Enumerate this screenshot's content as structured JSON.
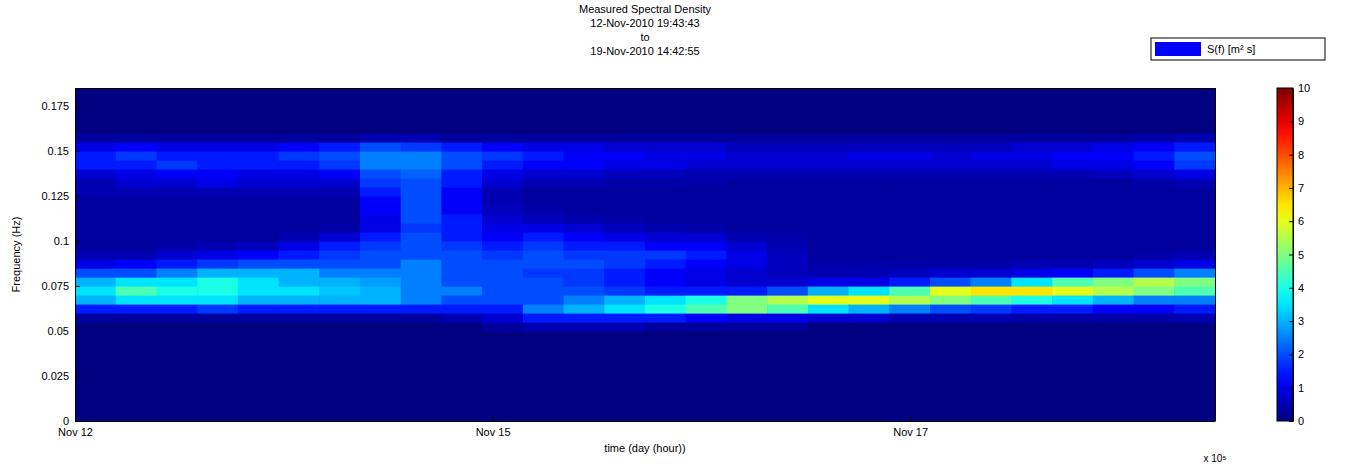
{
  "chart_data": {
    "type": "heatmap",
    "title": "Measured Spectral Density",
    "subtitle": [
      "12-Nov-2010 19:43:43",
      "to",
      "19-Nov-2010 14:42:55"
    ],
    "xlabel": "time (day (hour))",
    "ylabel": "Frequency (Hz)",
    "annotations": [
      "x 10⁵"
    ],
    "xlim": [
      0,
      5.46
    ],
    "xticks": [
      {
        "value": 0,
        "label": "Nov 12"
      },
      {
        "value": 2,
        "label": "Nov 15"
      },
      {
        "value": 4,
        "label": "Nov 17"
      }
    ],
    "ylim": [
      0,
      0.185
    ],
    "yticks": [
      0,
      0.025,
      0.05,
      0.075,
      0.1,
      0.125,
      0.15,
      0.175
    ],
    "grid": false,
    "legend": "top-right",
    "x_bins": [
      0,
      0.195,
      0.39,
      0.585,
      0.78,
      0.975,
      1.17,
      1.365,
      1.56,
      1.755,
      1.95,
      2.145,
      2.34,
      2.535,
      2.73,
      2.925,
      3.12,
      3.315,
      3.51,
      3.705,
      3.9,
      4.095,
      4.29,
      4.485,
      4.68,
      4.875,
      5.07,
      5.265,
      5.46
    ],
    "y_bins": [
      0.04,
      0.045,
      0.05,
      0.055,
      0.06,
      0.065,
      0.07,
      0.075,
      0.08,
      0.085,
      0.09,
      0.095,
      0.1,
      0.105,
      0.11,
      0.115,
      0.12,
      0.125,
      0.13,
      0.135,
      0.14,
      0.145,
      0.15,
      0.155,
      0.16,
      0.165
    ],
    "colorbar": {
      "range": [
        0,
        10
      ],
      "ticks": [
        0,
        1,
        2,
        3,
        4,
        5,
        6,
        7,
        8,
        9,
        10
      ]
    },
    "series": [
      {
        "name": "S(f) [m² s]",
        "color": "#0000ff",
        "cells": [
          [
            0,
            0,
            0,
            0.3,
            1.5,
            3,
            3.5,
            3,
            2,
            1,
            0.5,
            0.3,
            0.3,
            0.3,
            0.3,
            0.3,
            0.3,
            0.5,
            0.5,
            0.8,
            1.5,
            1.5,
            1,
            0.3,
            0
          ],
          [
            0,
            0,
            0,
            0.3,
            1.5,
            3.5,
            4.5,
            3.5,
            2,
            1.2,
            0.5,
            0.3,
            0.3,
            0.3,
            0.3,
            0.3,
            0.3,
            0.5,
            0.8,
            1,
            1.5,
            1.8,
            1.2,
            0.3,
            0
          ],
          [
            0,
            0,
            0,
            0.3,
            1.5,
            3.5,
            4,
            3.5,
            2.5,
            1.5,
            0.8,
            0.4,
            0.3,
            0.3,
            0.3,
            0.3,
            0.3,
            0.5,
            0.8,
            1.2,
            1.8,
            1.5,
            1,
            0.3,
            0
          ],
          [
            0,
            0,
            0,
            0.3,
            1.8,
            3.5,
            4,
            4,
            3,
            1.8,
            1,
            0.5,
            0.3,
            0.3,
            0.3,
            0.3,
            0.3,
            0.5,
            1,
            1.2,
            1.5,
            1.5,
            1,
            0.3,
            0
          ],
          [
            0,
            0,
            0,
            0.3,
            1.5,
            3,
            3.5,
            3.5,
            3,
            2,
            1.2,
            0.6,
            0.3,
            0.3,
            0.3,
            0.3,
            0.3,
            0.5,
            0.8,
            1,
            1.5,
            1.5,
            1,
            0.3,
            0
          ],
          [
            0,
            0,
            0,
            0.3,
            1.5,
            3,
            3.5,
            3,
            3,
            2,
            1.5,
            1,
            0.5,
            0.3,
            0.3,
            0.3,
            0.3,
            0.5,
            0.8,
            1,
            1.5,
            1.8,
            1.2,
            0.3,
            0
          ],
          [
            0,
            0,
            0,
            0.3,
            1.5,
            3,
            3.2,
            3,
            2.5,
            2,
            1.8,
            1.5,
            0.8,
            0.4,
            0.3,
            0.3,
            0.3,
            0.5,
            0.8,
            1.2,
            1.8,
            2,
            1.5,
            0.3,
            0
          ],
          [
            0,
            0,
            0,
            0.3,
            1.5,
            3,
            3,
            2.8,
            2.5,
            2,
            2,
            1.8,
            1.5,
            1,
            1,
            1.2,
            1.2,
            1.5,
            1.8,
            2,
            2.5,
            2.5,
            2,
            0.5,
            0
          ],
          [
            0,
            0,
            0,
            0.3,
            1.5,
            2.5,
            2.5,
            2.5,
            2.5,
            2.5,
            2,
            2,
            2,
            1.8,
            2,
            2,
            2,
            2,
            2,
            2.2,
            2.5,
            2.5,
            1.8,
            0.5,
            0
          ],
          [
            0,
            0,
            0,
            0.5,
            1.5,
            2,
            2.5,
            2,
            2,
            2,
            2,
            1.8,
            1.5,
            1.5,
            1.5,
            1.2,
            1.2,
            1.2,
            1.5,
            1.5,
            2,
            2,
            1.5,
            0.3,
            0
          ],
          [
            0,
            0,
            0.3,
            0.8,
            1.5,
            2,
            2,
            2,
            2,
            2,
            1.8,
            1.5,
            1.2,
            1,
            0.8,
            0.6,
            0.5,
            0.5,
            0.8,
            1,
            1.5,
            1.8,
            1.2,
            0.3,
            0
          ],
          [
            0,
            0,
            0.5,
            1.5,
            2.5,
            2,
            2,
            2,
            1.8,
            2,
            2,
            1.8,
            1.5,
            1,
            0.6,
            0.4,
            0.3,
            0.3,
            0.5,
            0.8,
            1.2,
            1.5,
            1,
            0.3,
            0
          ],
          [
            0,
            0,
            0.5,
            1.5,
            3,
            2.5,
            2,
            1.8,
            1.8,
            2,
            1.8,
            1.5,
            1.2,
            0.8,
            0.5,
            0.3,
            0.3,
            0.3,
            0.5,
            0.8,
            1.2,
            1.2,
            1,
            0.3,
            0
          ],
          [
            0,
            0,
            0.5,
            1.5,
            3.5,
            3,
            1.8,
            1.5,
            1.5,
            1.8,
            1.8,
            1.5,
            1,
            0.6,
            0.4,
            0.3,
            0.3,
            0.3,
            0.4,
            0.6,
            1,
            1.2,
            0.8,
            0.3,
            0
          ],
          [
            0,
            0,
            0.3,
            1.5,
            4,
            3.5,
            1.5,
            1.2,
            1.2,
            1.5,
            1.8,
            1.2,
            0.8,
            0.5,
            0.3,
            0.3,
            0.3,
            0.3,
            0.4,
            0.6,
            1,
            1,
            0.8,
            0.3,
            0
          ],
          [
            0,
            0,
            0.3,
            1.2,
            4.5,
            4,
            1.5,
            1,
            1,
            1.2,
            1.5,
            1.2,
            0.8,
            0.4,
            0.3,
            0.3,
            0.3,
            0.3,
            0.4,
            0.5,
            0.8,
            1,
            0.8,
            0.3,
            0
          ],
          [
            0,
            0,
            0.3,
            1,
            5,
            5,
            1.5,
            0.8,
            0.8,
            1,
            1,
            0.8,
            0.5,
            0.3,
            0.3,
            0.3,
            0.3,
            0.3,
            0.3,
            0.5,
            0.8,
            0.8,
            0.6,
            0.3,
            0
          ],
          [
            0,
            0,
            0.3,
            1,
            4.5,
            5.5,
            2,
            0.8,
            0.6,
            0.6,
            0.6,
            0.5,
            0.4,
            0.3,
            0.3,
            0.3,
            0.3,
            0.3,
            0.3,
            0.5,
            0.8,
            0.8,
            0.6,
            0.3,
            0
          ],
          [
            0,
            0,
            0,
            0.8,
            3.5,
            6,
            3,
            1,
            0.5,
            0.4,
            0.3,
            0.3,
            0.3,
            0.3,
            0.3,
            0.3,
            0.3,
            0.3,
            0.3,
            0.5,
            0.8,
            0.8,
            0.6,
            0.3,
            0
          ],
          [
            0,
            0,
            0,
            0.8,
            3,
            6,
            3.5,
            1,
            0.5,
            0.4,
            0.3,
            0.3,
            0.3,
            0.3,
            0.3,
            0.3,
            0.3,
            0.3,
            0.3,
            0.5,
            0.8,
            1,
            0.6,
            0.3,
            0
          ],
          [
            0,
            0,
            0,
            0.5,
            2.5,
            5.5,
            4.5,
            1.5,
            0.6,
            0.4,
            0.3,
            0.3,
            0.3,
            0.3,
            0.3,
            0.3,
            0.3,
            0.3,
            0.3,
            0.5,
            0.8,
            1,
            0.6,
            0.3,
            0
          ],
          [
            0,
            0,
            0,
            0.5,
            2,
            5,
            6,
            2,
            0.8,
            0.4,
            0.3,
            0.3,
            0.3,
            0.3,
            0.3,
            0.3,
            0.3,
            0.3,
            0.3,
            0.5,
            0.8,
            0.8,
            0.6,
            0.3,
            0
          ],
          [
            0,
            0,
            0,
            0.5,
            1.8,
            4.5,
            6.5,
            2.5,
            0.8,
            0.4,
            0.3,
            0.3,
            0.3,
            0.3,
            0.3,
            0.3,
            0.3,
            0.3,
            0.3,
            0.5,
            0.8,
            1,
            0.6,
            0.3,
            0
          ],
          [
            0,
            0,
            0,
            0.4,
            1.5,
            4,
            6.5,
            3.5,
            1,
            0.5,
            0.3,
            0.3,
            0.3,
            0.3,
            0.3,
            0.3,
            0.3,
            0.3,
            0.3,
            0.5,
            0.8,
            1,
            0.8,
            0.3,
            0
          ],
          [
            0,
            0,
            0,
            0.4,
            1.5,
            3.5,
            6,
            4.5,
            1.2,
            0.5,
            0.3,
            0.3,
            0.3,
            0.3,
            0.3,
            0.3,
            0.3,
            0.3,
            0.3,
            0.5,
            1,
            1.2,
            0.8,
            0.3,
            0
          ],
          [
            0,
            0,
            0,
            0.4,
            1.2,
            3,
            5.5,
            5,
            1.5,
            0.6,
            0.3,
            0.3,
            0.3,
            0.3,
            0.3,
            0.3,
            0.3,
            0.3,
            0.3,
            0.6,
            1,
            1.2,
            1,
            0.3,
            0
          ],
          [
            0,
            0,
            0,
            0.4,
            1.2,
            2.5,
            5,
            5.5,
            2,
            0.8,
            0.4,
            0.3,
            0.3,
            0.3,
            0.3,
            0.3,
            0.3,
            0.3,
            0.4,
            0.8,
            1.2,
            1.5,
            1.2,
            0.4,
            0
          ],
          [
            0,
            0,
            0,
            0.5,
            1.5,
            2.5,
            4.5,
            5,
            2.5,
            1,
            0.5,
            0.3,
            0.3,
            0.3,
            0.3,
            0.3,
            0.3,
            0.3,
            0.5,
            1,
            1.8,
            2,
            1.5,
            0.5,
            0
          ]
        ]
      }
    ]
  }
}
